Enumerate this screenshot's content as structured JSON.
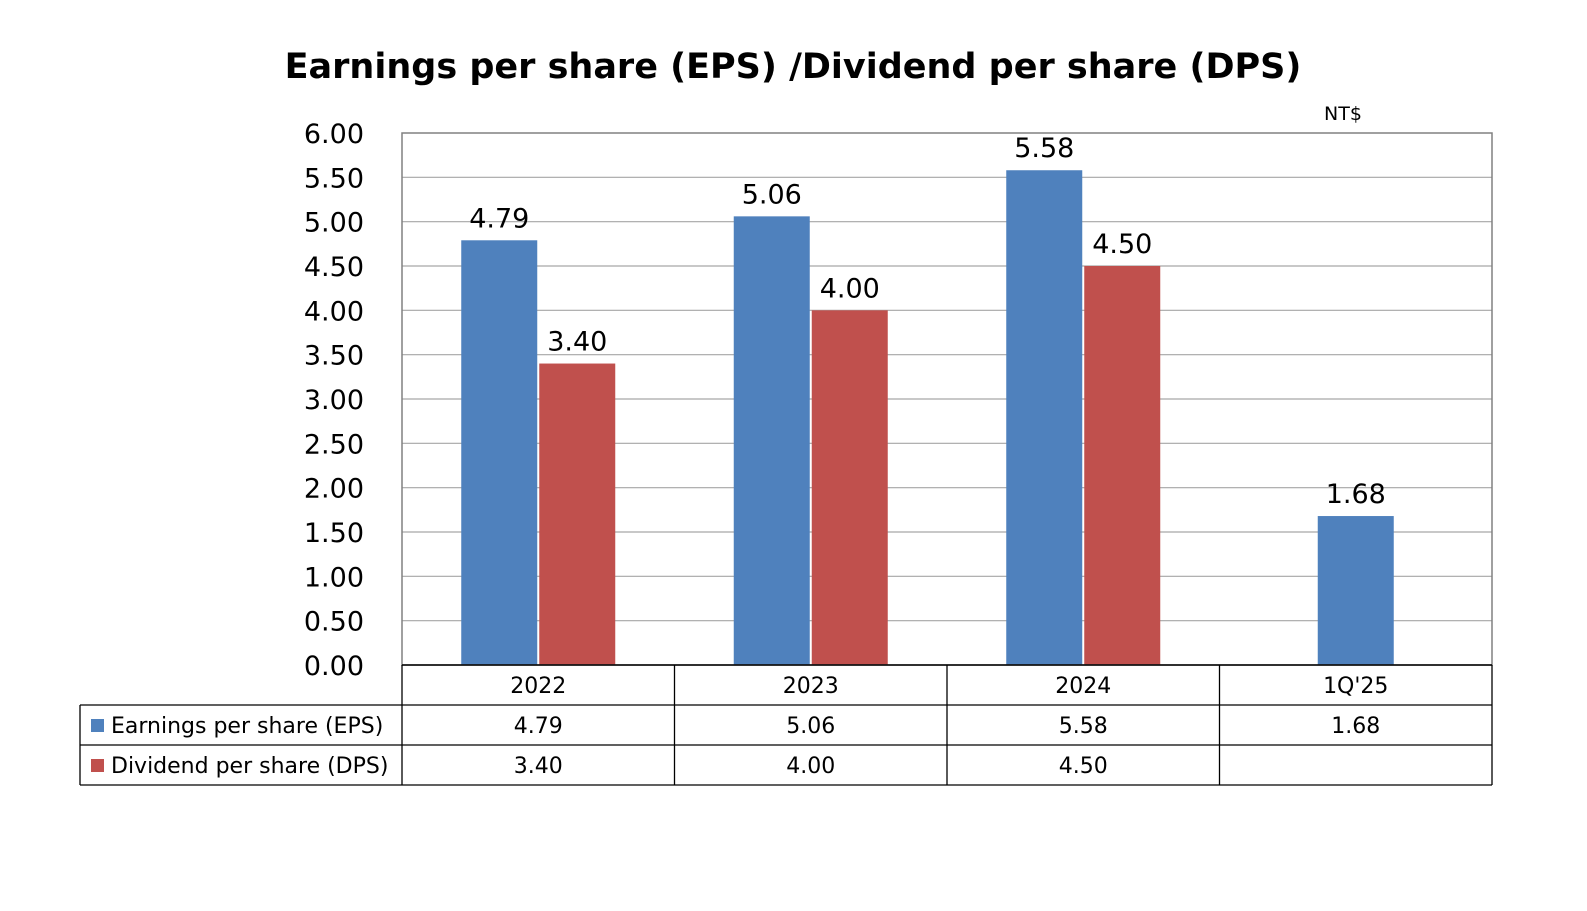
{
  "chart_data": {
    "type": "bar",
    "title": "Earnings per share (EPS) /Dividend per share (DPS)",
    "unit": "NT$",
    "xlabel": "",
    "ylabel": "",
    "categories": [
      "2022",
      "2023",
      "2024",
      "1Q'25"
    ],
    "series": [
      {
        "name": "Earnings per share (EPS)",
        "color": "#4F81BD",
        "values": [
          4.79,
          5.06,
          5.58,
          1.68
        ],
        "labels": [
          "4.79",
          "5.06",
          "5.58",
          "1.68"
        ]
      },
      {
        "name": "Dividend per share (DPS)",
        "color": "#C0504D",
        "values": [
          3.4,
          4.0,
          4.5,
          null
        ],
        "labels": [
          "3.40",
          "4.00",
          "4.50",
          ""
        ]
      }
    ],
    "ylim": [
      0,
      6
    ],
    "yticks": [
      "0.00",
      "0.50",
      "1.00",
      "1.50",
      "2.00",
      "2.50",
      "3.00",
      "3.50",
      "4.00",
      "4.50",
      "5.00",
      "5.50",
      "6.00"
    ],
    "grid": true,
    "legend": "data table below chart"
  }
}
